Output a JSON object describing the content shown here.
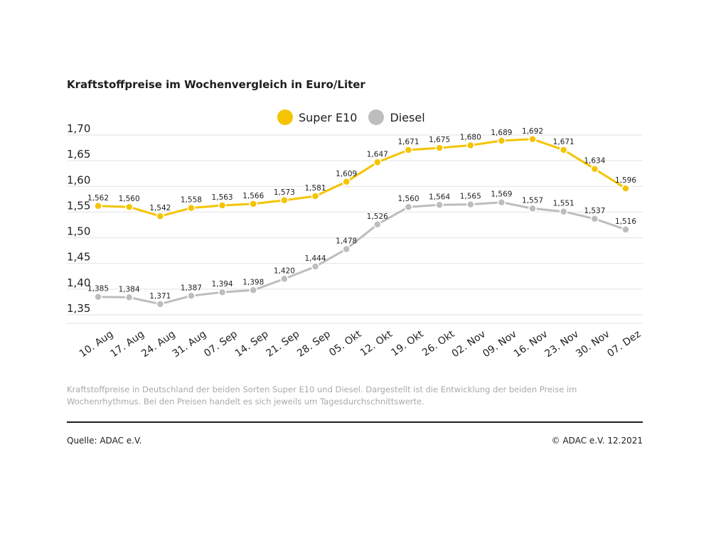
{
  "header": {
    "title": "Kraftstoffpreise im Wochenvergleich in Euro/Liter"
  },
  "colors": {
    "super_e10": "#f5c400",
    "diesel": "#bdbdbd",
    "grid": "#e2e2e2",
    "text": "#1e1e1e"
  },
  "chart_data": {
    "type": "line",
    "title": "Kraftstoffpreise im Wochenvergleich in Euro/Liter",
    "xlabel": "",
    "ylabel": "",
    "ylim": [
      1.35,
      1.7
    ],
    "yticks": [
      "1,70",
      "1,65",
      "1,60",
      "1,55",
      "1,50",
      "1,45",
      "1,40",
      "1,35"
    ],
    "ytick_values": [
      1.7,
      1.65,
      1.6,
      1.55,
      1.5,
      1.45,
      1.4,
      1.35
    ],
    "grid": true,
    "legend_position": "top-center",
    "categories": [
      "10. Aug",
      "17. Aug",
      "24. Aug",
      "31. Aug",
      "07. Sep",
      "14. Sep",
      "21. Sep",
      "28. Sep",
      "05. Okt",
      "12. Okt",
      "19. Okt",
      "26. Okt",
      "02. Nov",
      "09. Nov",
      "16. Nov",
      "23. Nov",
      "30. Nov",
      "07. Dez"
    ],
    "series": [
      {
        "name": "Super E10",
        "color": "#f5c400",
        "values": [
          1.562,
          1.56,
          1.542,
          1.558,
          1.563,
          1.566,
          1.573,
          1.581,
          1.609,
          1.647,
          1.671,
          1.675,
          1.68,
          1.689,
          1.692,
          1.671,
          1.634,
          1.596
        ],
        "labels": [
          "1,562",
          "1,560",
          "1,542",
          "1,558",
          "1,563",
          "1,566",
          "1,573",
          "1,581",
          "1,609",
          "1,647",
          "1,671",
          "1,675",
          "1,680",
          "1,689",
          "1,692",
          "1,671",
          "1,634",
          "1,596"
        ]
      },
      {
        "name": "Diesel",
        "color": "#bdbdbd",
        "values": [
          1.385,
          1.384,
          1.371,
          1.387,
          1.394,
          1.398,
          1.42,
          1.444,
          1.478,
          1.526,
          1.56,
          1.564,
          1.565,
          1.569,
          1.557,
          1.551,
          1.537,
          1.516
        ],
        "labels": [
          "1,385",
          "1,384",
          "1,371",
          "1,387",
          "1,394",
          "1,398",
          "1,420",
          "1,444",
          "1,478",
          "1,526",
          "1,560",
          "1,564",
          "1,565",
          "1,569",
          "1,557",
          "1,551",
          "1,537",
          "1,516"
        ]
      }
    ]
  },
  "footer": {
    "description": "Kraftstoffpreise in Deutschland der beiden Sorten Super E10 und Diesel. Dargestellt ist die Entwicklung der beiden Preise im Wochenrhythmus. Bei den Preisen handelt es sich jeweils um Tagesdurchschnittswerte.",
    "source": "Quelle: ADAC e.V.",
    "copyright": "© ADAC e.V. 12.2021"
  }
}
